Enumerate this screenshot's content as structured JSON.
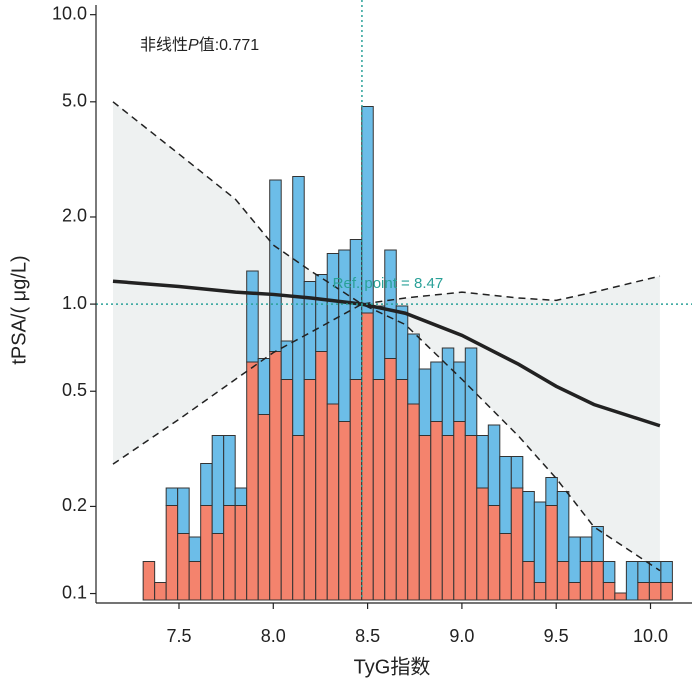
{
  "chart_data": {
    "type": "histogram-spline",
    "annotation": [
      "非线性",
      "P",
      "值:0.771"
    ],
    "ref_label": "Ref. point = 8.47",
    "ref_x": 8.47,
    "ref_y": 1.0,
    "x_label": "TyG指数",
    "y_label": "tPSA/( μg/L)",
    "xlim": [
      7.06,
      10.22
    ],
    "xticks": [
      7.5,
      {
        "value": 8.0,
        "label": "8.0"
      },
      8.5,
      {
        "value": 9.0,
        "label": "9.0"
      },
      9.5,
      {
        "value": 10.0,
        "label": "10.0"
      }
    ],
    "ylim": [
      0.095,
      10.8
    ],
    "log_y": true,
    "yticks": [
      0.1,
      0.2,
      0.5,
      {
        "value": 1.0,
        "label": "1.0"
      },
      {
        "value": 2.0,
        "label": "2.0"
      },
      {
        "value": 5.0,
        "label": "5.0"
      },
      {
        "value": 10.0,
        "label": "10.0"
      }
    ],
    "y2lim": [
      0,
      17
    ],
    "bins": [
      7.31,
      7.371,
      7.432,
      7.493,
      7.554,
      7.615,
      7.676,
      7.737,
      7.798,
      7.859,
      7.92,
      7.981,
      8.042,
      8.103,
      8.164,
      8.225,
      8.286,
      8.347,
      8.408,
      8.469,
      8.53,
      8.591,
      8.652,
      8.713,
      8.774,
      8.835,
      8.896,
      8.957,
      9.018,
      9.079,
      9.14,
      9.201,
      9.262,
      9.323,
      9.384,
      9.445,
      9.506,
      9.567,
      9.628,
      9.689,
      9.75,
      9.811,
      9.872,
      9.933,
      9.994,
      10.055,
      10.116
    ],
    "series": [
      {
        "color": "#f4836d",
        "axis": "y2",
        "values": [
          1.1,
          0.5,
          2.7,
          1.9,
          1.1,
          2.7,
          1.9,
          2.7,
          2.7,
          6.8,
          5.3,
          7.1,
          6.3,
          4.7,
          6.3,
          7.1,
          5.6,
          5.1,
          6.3,
          8.2,
          6.3,
          6.9,
          6.3,
          5.6,
          4.7,
          5.1,
          4.7,
          5.1,
          4.7,
          3.2,
          2.7,
          1.9,
          3.2,
          1.1,
          0.5,
          2.7,
          1.1,
          0.5,
          1.1,
          1.1,
          0.5,
          0.2,
          0,
          0.5,
          0.5,
          0.5
        ]
      },
      {
        "color": "#6cbde8",
        "axis": "y2",
        "values": [
          0,
          0,
          0.5,
          1.3,
          0.7,
          1.2,
          2.8,
          2.0,
          0.5,
          2.6,
          1.6,
          4.9,
          1.1,
          7.4,
          2.8,
          2.2,
          4.3,
          4.9,
          4.0,
          5.9,
          2.1,
          3.1,
          2.1,
          2.0,
          1.9,
          1.7,
          2.5,
          1.7,
          2.5,
          1.5,
          2.3,
          2.2,
          0.9,
          2.0,
          2.3,
          0.8,
          2.0,
          1.3,
          0.7,
          1.0,
          0.6,
          0,
          1.1,
          0.6,
          0.6,
          0.6
        ]
      }
    ],
    "curve_x": [
      7.15,
      7.5,
      7.8,
      8.0,
      8.2,
      8.47,
      8.7,
      9.0,
      9.3,
      9.5,
      9.7,
      10.05
    ],
    "curve": [
      1.2,
      1.15,
      1.1,
      1.08,
      1.05,
      1.0,
      0.93,
      0.78,
      0.62,
      0.52,
      0.45,
      0.38
    ],
    "upper": [
      5.0,
      3.3,
      2.3,
      1.6,
      1.3,
      1.0,
      1.05,
      1.1,
      1.05,
      1.03,
      1.1,
      1.25
    ],
    "lower": [
      0.28,
      0.4,
      0.55,
      0.68,
      0.8,
      1.0,
      0.85,
      0.55,
      0.35,
      0.25,
      0.17,
      0.12
    ]
  }
}
